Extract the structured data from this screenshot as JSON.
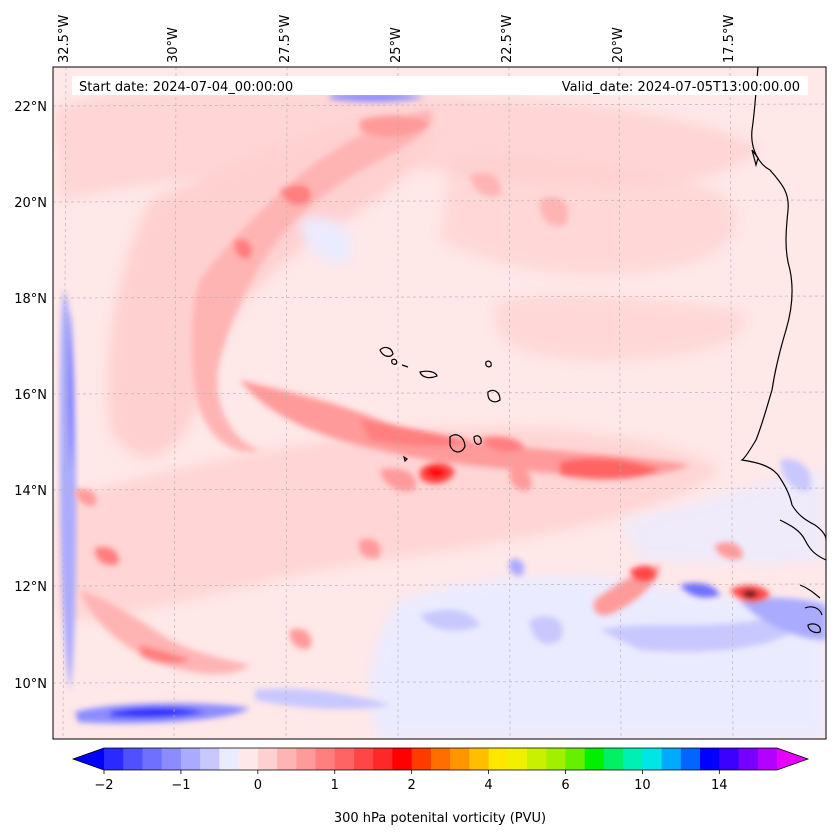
{
  "map": {
    "start_date": "Start date: 2024-07-04_00:00:00",
    "valid_date": "Valid_date: 2024-07-05T13:00:00.00",
    "lon_labels": [
      "32.5°W",
      "30°W",
      "27.5°W",
      "25°W",
      "22.5°W",
      "20°W",
      "17.5°W"
    ],
    "lat_labels": [
      "22°N",
      "20°N",
      "18°N",
      "16°N",
      "14°N",
      "12°N",
      "10°N"
    ],
    "variable": "300 hPa potential vorticity",
    "units": "PVU"
  },
  "colorbar": {
    "label": "300 hPa potenital vorticity (PVU)",
    "tick_labels": [
      "−2",
      "−1",
      "0",
      "1",
      "2",
      "4",
      "6",
      "10",
      "14"
    ],
    "colors": [
      "#0000ff",
      "#2a2aff",
      "#5050ff",
      "#7070ff",
      "#8c8cff",
      "#aaaaff",
      "#c8c8ff",
      "#ebebff",
      "#ffe8e8",
      "#ffd0d0",
      "#ffb4b4",
      "#ff9a9a",
      "#ff7e7e",
      "#ff6464",
      "#ff4646",
      "#ff2828",
      "#ff0000",
      "#ff3c00",
      "#ff6e00",
      "#ff9600",
      "#ffbe00",
      "#ffe600",
      "#f0f000",
      "#c8f000",
      "#a0f000",
      "#64f000",
      "#00f000",
      "#00f064",
      "#00f0b4",
      "#00e6e6",
      "#00aaff",
      "#0064ff",
      "#0000ff",
      "#3c00ff",
      "#7800ff",
      "#b400ff",
      "#e600ff"
    ]
  }
}
